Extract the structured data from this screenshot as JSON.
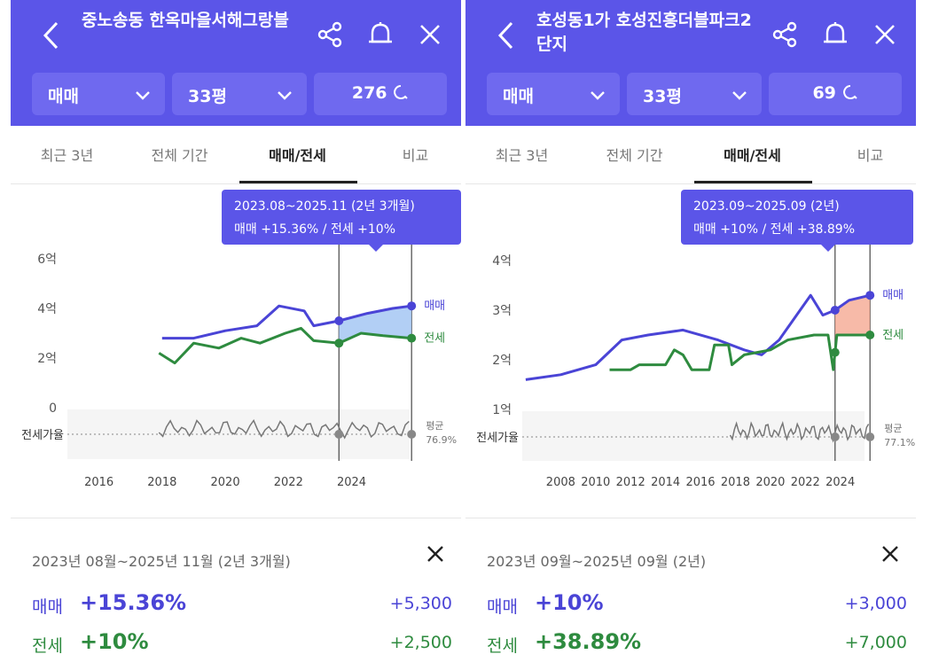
{
  "panels": [
    {
      "title": "중노송동 한옥마을서해그랑블",
      "filters": {
        "trade_type": "매매",
        "size": "33평",
        "count": "276"
      },
      "tabs": [
        "최근 3년",
        "전체 기간",
        "매매/전세",
        "비교"
      ],
      "active_tab": "매매/전세",
      "tooltip": {
        "period": "2023.08~2025.11 (2년 3개월)",
        "change": "매매 +15.36%  /  전세 +10%"
      },
      "summary": {
        "range": "2023년 08월~2025년 11월 (2년 3개월)",
        "sale": {
          "label": "매매",
          "pct": "+15.36%",
          "abs": "+5,300"
        },
        "jeonse": {
          "label": "전세",
          "pct": "+10%",
          "abs": "+2,500"
        }
      },
      "chart_data": {
        "type": "line",
        "x_ticks": [
          "2016",
          "2018",
          "2020",
          "2022",
          "2024"
        ],
        "y_ticks": [
          "6억",
          "4억",
          "2억",
          "0"
        ],
        "ylim": [
          0,
          6
        ],
        "series": [
          {
            "name": "매매",
            "points": [
              [
                2018.0,
                2.8
              ],
              [
                2019.0,
                2.8
              ],
              [
                2020.0,
                3.1
              ],
              [
                2021.0,
                3.3
              ],
              [
                2021.7,
                4.1
              ],
              [
                2022.5,
                3.9
              ],
              [
                2022.8,
                3.3
              ],
              [
                2023.6,
                3.5
              ],
              [
                2024.5,
                3.8
              ],
              [
                2025.3,
                4.0
              ],
              [
                2025.9,
                4.1
              ]
            ]
          },
          {
            "name": "전세",
            "points": [
              [
                2017.9,
                2.2
              ],
              [
                2018.4,
                1.8
              ],
              [
                2019.0,
                2.6
              ],
              [
                2019.8,
                2.4
              ],
              [
                2020.5,
                2.8
              ],
              [
                2021.1,
                2.6
              ],
              [
                2021.9,
                3.0
              ],
              [
                2022.4,
                3.2
              ],
              [
                2022.8,
                2.7
              ],
              [
                2023.6,
                2.6
              ],
              [
                2024.3,
                3.0
              ],
              [
                2025.0,
                2.9
              ],
              [
                2025.9,
                2.8
              ]
            ]
          }
        ],
        "jeonse_ratio_avg": "76.9%",
        "ratio_label": "전세가율",
        "avg_label": "평균",
        "legend": {
          "sale": "매매",
          "jeonse": "전세"
        },
        "selection": [
          2023.6,
          2025.9
        ]
      }
    },
    {
      "title": "호성동1가 호성진흥더블파크2단지",
      "filters": {
        "trade_type": "매매",
        "size": "33평",
        "count": "69"
      },
      "tabs": [
        "최근 3년",
        "전체 기간",
        "매매/전세",
        "비교"
      ],
      "active_tab": "매매/전세",
      "tooltip": {
        "period": "2023.09~2025.09 (2년)",
        "change": "매매 +10%  /  전세 +38.89%"
      },
      "summary": {
        "range": "2023년 09월~2025년 09월 (2년)",
        "sale": {
          "label": "매매",
          "pct": "+10%",
          "abs": "+3,000"
        },
        "jeonse": {
          "label": "전세",
          "pct": "+38.89%",
          "abs": "+7,000"
        }
      },
      "chart_data": {
        "type": "line",
        "x_ticks": [
          "2008",
          "2010",
          "2012",
          "2014",
          "2016",
          "2018",
          "2020",
          "2022",
          "2024"
        ],
        "y_ticks": [
          "4억",
          "3억",
          "2억",
          "1억"
        ],
        "ylim": [
          1,
          4
        ],
        "series": [
          {
            "name": "매매",
            "points": [
              [
                2006.0,
                1.6
              ],
              [
                2008.0,
                1.7
              ],
              [
                2010.0,
                1.9
              ],
              [
                2011.5,
                2.4
              ],
              [
                2013.0,
                2.5
              ],
              [
                2015.0,
                2.6
              ],
              [
                2017.0,
                2.4
              ],
              [
                2018.5,
                2.2
              ],
              [
                2019.5,
                2.1
              ],
              [
                2020.5,
                2.4
              ],
              [
                2021.5,
                2.9
              ],
              [
                2022.3,
                3.3
              ],
              [
                2023.0,
                2.9
              ],
              [
                2023.7,
                3.0
              ],
              [
                2024.5,
                3.2
              ],
              [
                2025.7,
                3.3
              ]
            ]
          },
          {
            "name": "전세",
            "points": [
              [
                2010.8,
                1.8
              ],
              [
                2012.0,
                1.8
              ],
              [
                2012.5,
                1.9
              ],
              [
                2014.0,
                1.9
              ],
              [
                2014.5,
                2.2
              ],
              [
                2015.0,
                2.1
              ],
              [
                2015.5,
                1.8
              ],
              [
                2016.5,
                1.8
              ],
              [
                2016.8,
                2.3
              ],
              [
                2017.6,
                2.3
              ],
              [
                2017.8,
                1.9
              ],
              [
                2018.5,
                2.1
              ],
              [
                2020.0,
                2.2
              ],
              [
                2020.5,
                2.3
              ],
              [
                2021.0,
                2.4
              ],
              [
                2022.5,
                2.5
              ],
              [
                2023.3,
                2.5
              ],
              [
                2023.6,
                1.8
              ],
              [
                2023.8,
                2.5
              ],
              [
                2025.7,
                2.5
              ]
            ]
          }
        ],
        "jeonse_ratio_avg": "77.1%",
        "ratio_label": "전세가율",
        "avg_label": "평균",
        "legend": {
          "sale": "매매",
          "jeonse": "전세"
        },
        "selection": [
          2023.7,
          2025.7
        ]
      }
    }
  ],
  "colors": {
    "header": "#5b55e8",
    "sale": "#4a44d6",
    "jeonse": "#2e8b3f",
    "history": "#999999"
  }
}
